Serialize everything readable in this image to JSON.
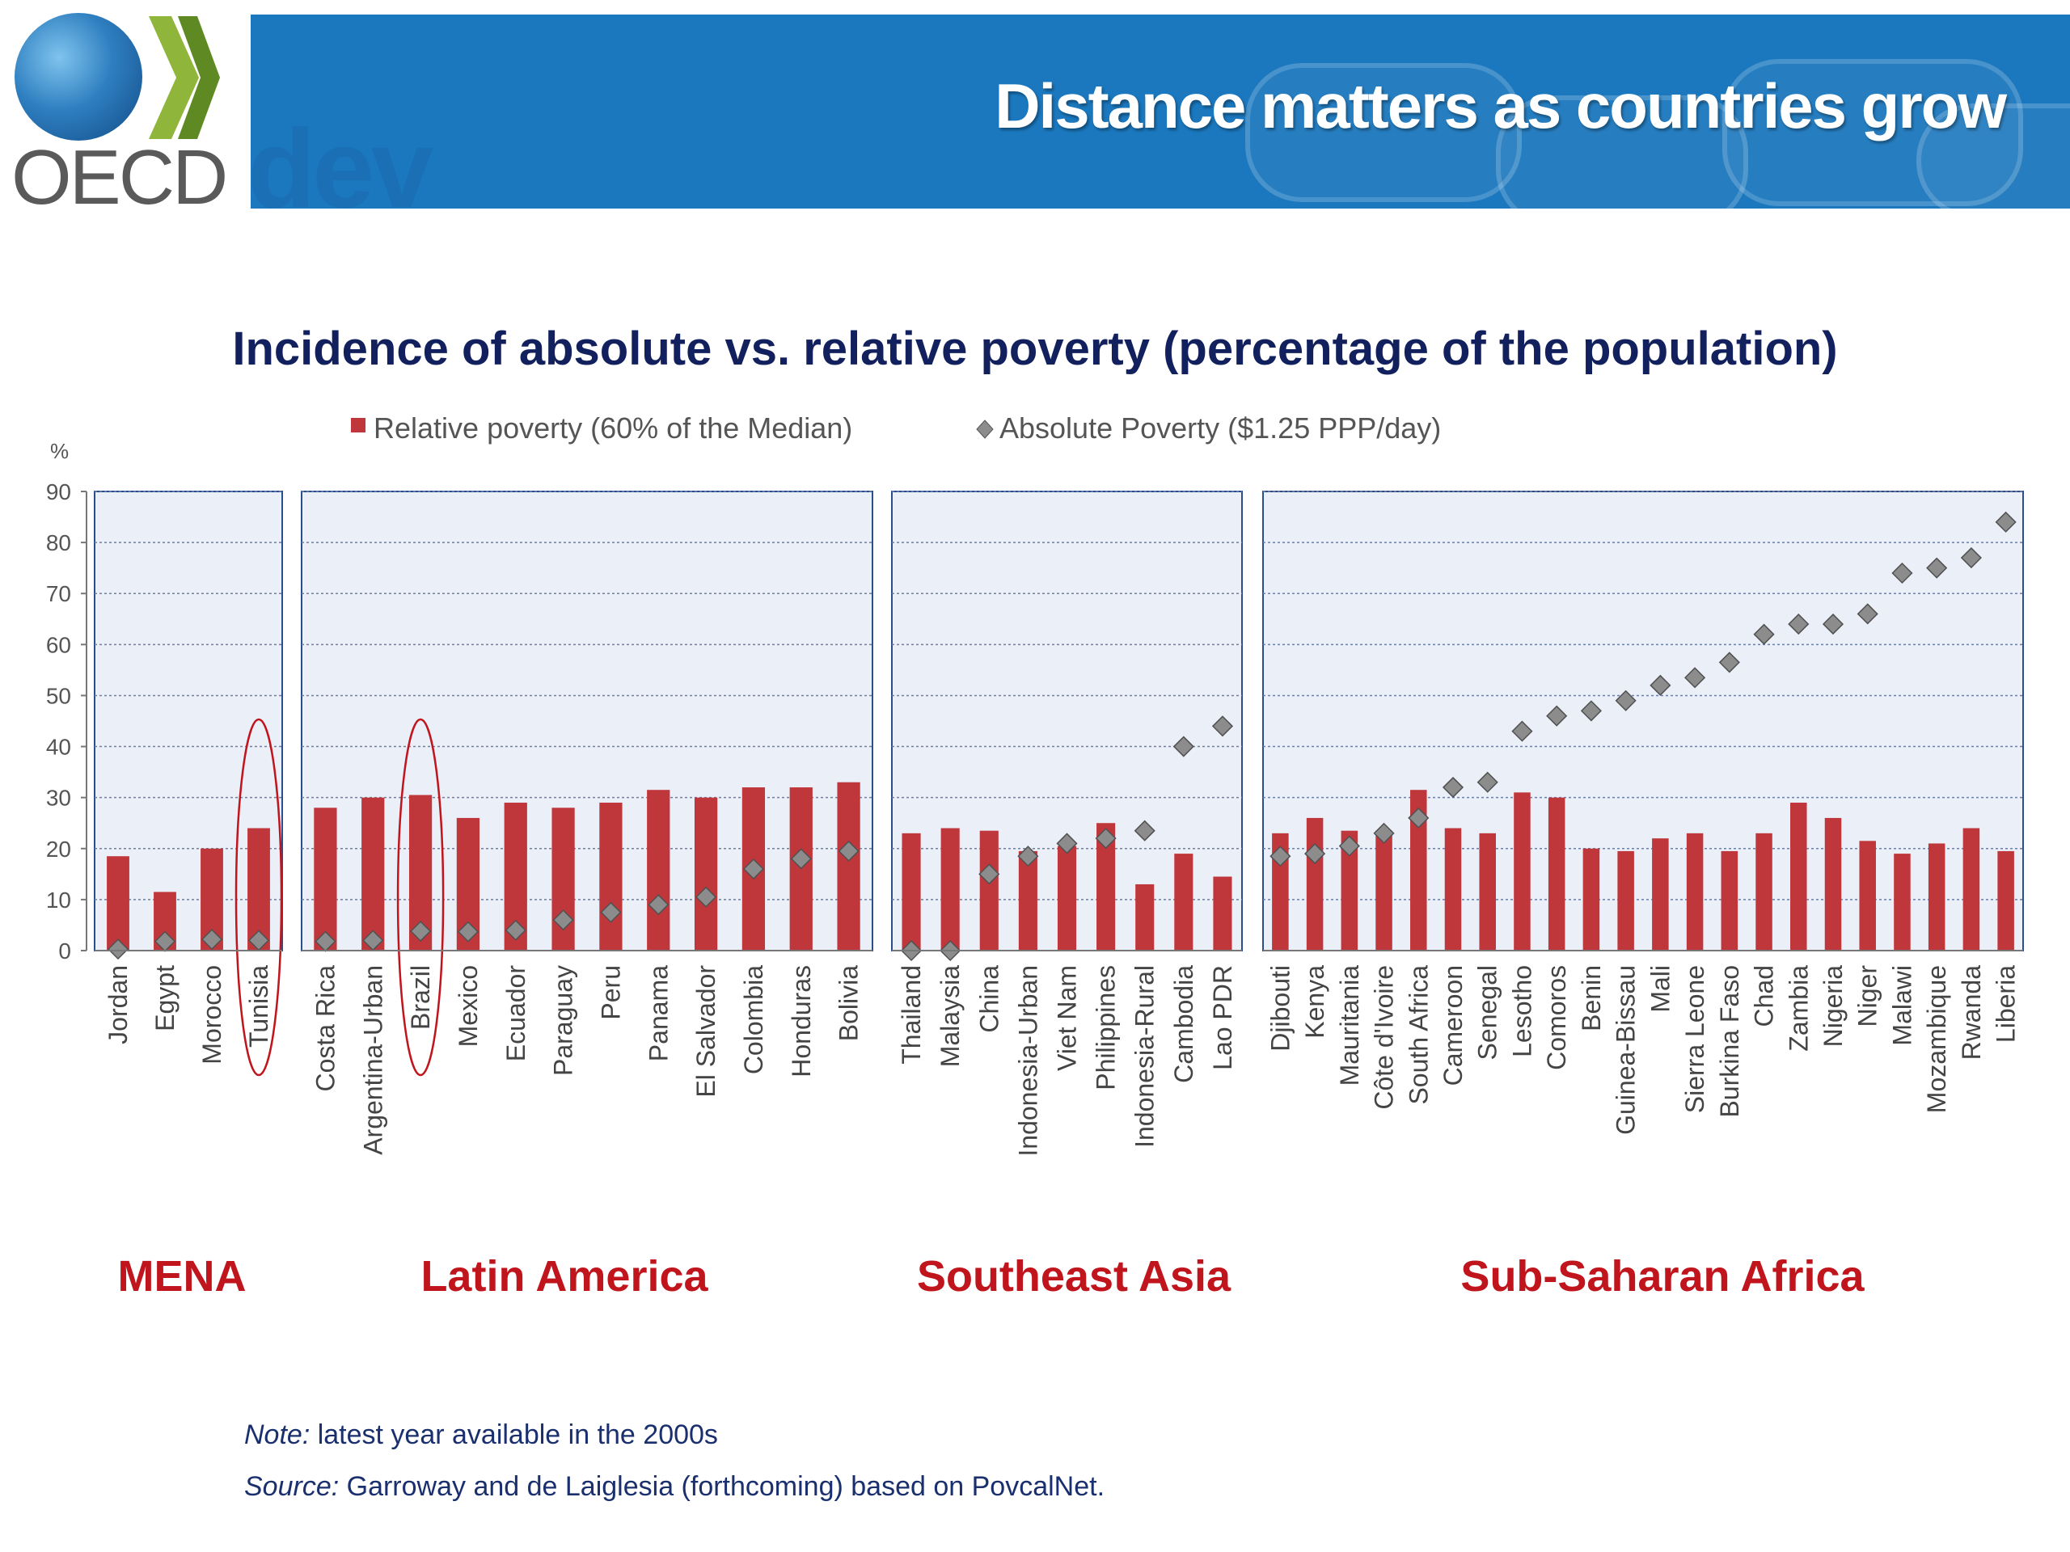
{
  "header": {
    "title": "Distance matters as countries grow",
    "logo_text": "OECD",
    "logo_dev": "dev"
  },
  "chart_data": {
    "type": "bar",
    "title": "Incidence of absolute vs. relative poverty (percentage of the population)",
    "ylabel": "%",
    "ylim": [
      0,
      90
    ],
    "yticks": [
      0,
      10,
      20,
      30,
      40,
      50,
      60,
      70,
      80,
      90
    ],
    "grid": true,
    "legend_position": "top",
    "series": [
      {
        "name": "Relative poverty (60% of the Median)",
        "kind": "bar",
        "color": "#c0373b"
      },
      {
        "name": "Absolute Poverty ($1.25 PPP/day)",
        "kind": "marker",
        "color": "#8c8c8c"
      }
    ],
    "highlighted": [
      "Tunisia",
      "Brazil"
    ],
    "groups": [
      {
        "region": "MENA",
        "categories": [
          "Jordan",
          "Egypt",
          "Morocco",
          "Tunisia"
        ],
        "relative": [
          18.5,
          11.5,
          20,
          24
        ],
        "absolute": [
          0.3,
          1.8,
          2.2,
          2
        ]
      },
      {
        "region": "Latin America",
        "categories": [
          "Costa Rica",
          "Argentina-Urban",
          "Brazil",
          "Mexico",
          "Ecuador",
          "Paraguay",
          "Peru",
          "Panama",
          "El Salvador",
          "Colombia",
          "Honduras",
          "Bolivia"
        ],
        "relative": [
          28,
          30,
          30.5,
          26,
          29,
          28,
          29,
          31.5,
          30,
          32,
          32,
          33
        ],
        "absolute": [
          1.8,
          2,
          3.8,
          3.7,
          4,
          6,
          7.5,
          9,
          10.5,
          16,
          18,
          19.5
        ]
      },
      {
        "region": "Southeast Asia",
        "categories": [
          "Thailand",
          "Malaysia",
          "China",
          "Indonesia-Urban",
          "Viet Nam",
          "Philippines",
          "Indonesia-Rural",
          "Cambodia",
          "Lao PDR"
        ],
        "relative": [
          23,
          24,
          23.5,
          19.5,
          20.5,
          25,
          13,
          19,
          14.5
        ],
        "absolute": [
          0,
          0,
          15,
          18.5,
          21,
          22,
          23.5,
          40,
          44
        ]
      },
      {
        "region": "Sub-Saharan Africa",
        "categories": [
          "Djibouti",
          "Kenya",
          "Mauritania",
          "Côte d'Ivoire",
          "South Africa",
          "Cameroon",
          "Senegal",
          "Lesotho",
          "Comoros",
          "Benin",
          "Guinea-Bissau",
          "Mali",
          "Sierra Leone",
          "Burkina Faso",
          "Chad",
          "Zambia",
          "Nigeria",
          "Niger",
          "Malawi",
          "Mozambique",
          "Rwanda",
          "Liberia"
        ],
        "relative": [
          23,
          26,
          23.5,
          23.5,
          31.5,
          24,
          23,
          31,
          30,
          20,
          19.5,
          22,
          23,
          19.5,
          23,
          29,
          26,
          21.5,
          19,
          21,
          24,
          19.5
        ],
        "absolute": [
          18.5,
          19,
          20.5,
          23,
          26,
          32,
          33,
          43,
          46,
          47,
          49,
          52,
          53.5,
          56.5,
          62,
          64,
          64,
          66,
          74,
          75,
          77,
          84
        ]
      }
    ]
  },
  "footnote": {
    "note_label": "Note:",
    "note_text": " latest year  available in the 2000s",
    "source_label": "Source:",
    "source_text": " Garroway and de Laiglesia (forthcoming) based on PovcalNet."
  }
}
